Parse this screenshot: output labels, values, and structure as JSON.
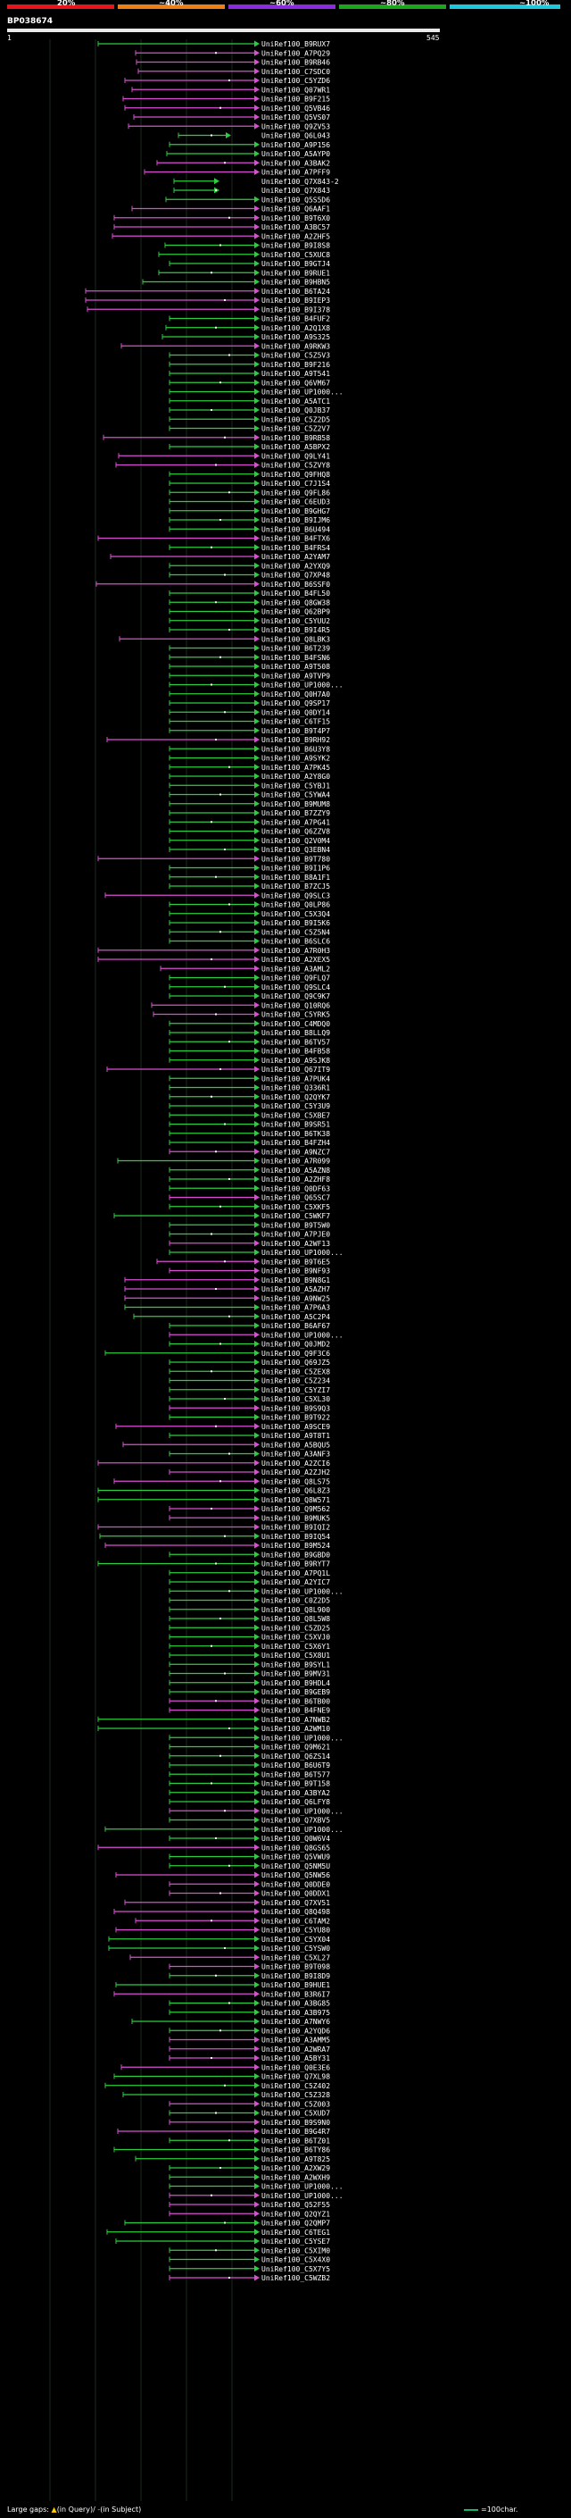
{
  "legend": {
    "labels": [
      "20%",
      "~40%",
      "~60%",
      "~80%",
      "~100%"
    ],
    "colors": [
      "#e8141b",
      "#ed7f14",
      "#8a2be2",
      "#1ea51e",
      "#1ec8dc"
    ]
  },
  "query": {
    "title": "BP038674",
    "start": "1",
    "end": "545"
  },
  "hit_colors": {
    "forward": "#2ecc40",
    "reverse": "#d94fd2",
    "gap": "#ffffff"
  },
  "hits": [
    {
      "label": "UniRef100_B9RUX7",
      "color": "green"
    },
    {
      "label": "UniRef100_A7PQ29",
      "color": "pink"
    },
    {
      "label": "UniRef100_B9RB46",
      "color": "pink"
    },
    {
      "label": "UniRef100_C7SDC0",
      "color": "pink"
    },
    {
      "label": "UniRef100_C5YZD6",
      "color": "pink"
    },
    {
      "label": "UniRef100_Q07WR1",
      "color": "pink"
    },
    {
      "label": "UniRef100_B9F215",
      "color": "pink"
    },
    {
      "label": "UniRef100_Q5VB46",
      "color": "pink"
    },
    {
      "label": "UniRef100_Q5VS07",
      "color": "pink"
    },
    {
      "label": "UniRef100_Q9ZV53",
      "color": "pink"
    },
    {
      "label": "UniRef100_Q6L043",
      "color": "green"
    },
    {
      "label": "UniRef100_A9P156",
      "color": "green"
    },
    {
      "label": "UniRef100_A5AYP0",
      "color": "green"
    },
    {
      "label": "UniRef100_A3BAK2",
      "color": "pink"
    },
    {
      "label": "UniRef100_A7PFF9",
      "color": "pink"
    },
    {
      "label": "UniRef100_Q7X843-2",
      "color": "green"
    },
    {
      "label": "UniRef100_Q7X843",
      "color": "green"
    },
    {
      "label": "UniRef100_Q5S5D6",
      "color": "green"
    },
    {
      "label": "UniRef100_Q6AAF1",
      "color": "pink"
    },
    {
      "label": "UniRef100_B9T6X0",
      "color": "pink"
    },
    {
      "label": "UniRef100_A3BC57",
      "color": "pink"
    },
    {
      "label": "UniRef100_A2ZHF5",
      "color": "pink"
    },
    {
      "label": "UniRef100_B9I8S8",
      "color": "green"
    },
    {
      "label": "UniRef100_C5XUC8",
      "color": "green"
    },
    {
      "label": "UniRef100_B9GTJ4",
      "color": "green"
    },
    {
      "label": "UniRef100_B9RUE1",
      "color": "green"
    },
    {
      "label": "UniRef100_B9HBN5",
      "color": "green"
    },
    {
      "label": "UniRef100_B6TA24",
      "color": "pink"
    },
    {
      "label": "UniRef100_B9IEP3",
      "color": "pink"
    },
    {
      "label": "UniRef100_B9I378",
      "color": "pink"
    },
    {
      "label": "UniRef100_B4FUF2",
      "color": "green"
    },
    {
      "label": "UniRef100_A2Q1X8",
      "color": "green"
    },
    {
      "label": "UniRef100_A9S325",
      "color": "green"
    },
    {
      "label": "UniRef100_A9RKW3",
      "color": "pink"
    },
    {
      "label": "UniRef100_C5Z5V3",
      "color": "green"
    },
    {
      "label": "UniRef100_B9F216",
      "color": "green"
    },
    {
      "label": "UniRef100_A9T541",
      "color": "green"
    },
    {
      "label": "UniRef100_Q6VM67",
      "color": "green"
    },
    {
      "label": "UniRef100_UP1000...",
      "color": "green"
    },
    {
      "label": "UniRef100_A5ATC1",
      "color": "green"
    },
    {
      "label": "UniRef100_Q0JB37",
      "color": "green"
    },
    {
      "label": "UniRef100_C5Z2D5",
      "color": "green"
    },
    {
      "label": "UniRef100_C5Z2V7",
      "color": "green"
    },
    {
      "label": "UniRef100_B9RB58",
      "color": "pink"
    },
    {
      "label": "UniRef100_A5BPX2",
      "color": "green"
    },
    {
      "label": "UniRef100_Q9LY41",
      "color": "pink"
    },
    {
      "label": "UniRef100_C5ZVY8",
      "color": "pink"
    },
    {
      "label": "UniRef100_Q9FHQ8",
      "color": "green"
    },
    {
      "label": "UniRef100_C7J1S4",
      "color": "green"
    },
    {
      "label": "UniRef100_Q9FL86",
      "color": "green"
    },
    {
      "label": "UniRef100_C6EUD3",
      "color": "green"
    },
    {
      "label": "UniRef100_B9GHG7",
      "color": "green"
    },
    {
      "label": "UniRef100_B9IJM6",
      "color": "green"
    },
    {
      "label": "UniRef100_B6U494",
      "color": "green"
    },
    {
      "label": "UniRef100_B4FTX6",
      "color": "pink"
    },
    {
      "label": "UniRef100_B4FRS4",
      "color": "green"
    },
    {
      "label": "UniRef100_A2YAM7",
      "color": "pink"
    },
    {
      "label": "UniRef100_A2YXQ9",
      "color": "green"
    },
    {
      "label": "UniRef100_Q7XP48",
      "color": "green"
    },
    {
      "label": "UniRef100_B6SSF0",
      "color": "pink"
    },
    {
      "label": "UniRef100_B4FL50",
      "color": "green"
    },
    {
      "label": "UniRef100_Q8GW38",
      "color": "green"
    },
    {
      "label": "UniRef100_Q62BP9",
      "color": "green"
    },
    {
      "label": "UniRef100_C5YUU2",
      "color": "green"
    },
    {
      "label": "UniRef100_B9I4R5",
      "color": "green"
    },
    {
      "label": "UniRef100_Q8LBK3",
      "color": "pink"
    },
    {
      "label": "UniRef100_B6T239",
      "color": "green"
    },
    {
      "label": "UniRef100_B4FSN6",
      "color": "green"
    },
    {
      "label": "UniRef100_A9T508",
      "color": "green"
    },
    {
      "label": "UniRef100_A9TVP9",
      "color": "green"
    },
    {
      "label": "UniRef100_UP1000...",
      "color": "green"
    },
    {
      "label": "UniRef100_Q0H7A0",
      "color": "green"
    },
    {
      "label": "UniRef100_Q9SP17",
      "color": "green"
    },
    {
      "label": "UniRef100_Q0DY14",
      "color": "green"
    },
    {
      "label": "UniRef100_C6TF15",
      "color": "green"
    },
    {
      "label": "UniRef100_B9T4P7",
      "color": "green"
    },
    {
      "label": "UniRef100_B9RH92",
      "color": "pink"
    },
    {
      "label": "UniRef100_B6U3Y8",
      "color": "green"
    },
    {
      "label": "UniRef100_A9SYK2",
      "color": "green"
    },
    {
      "label": "UniRef100_A7PK45",
      "color": "green"
    },
    {
      "label": "UniRef100_A2Y8G0",
      "color": "green"
    },
    {
      "label": "UniRef100_C5YBJ1",
      "color": "green"
    },
    {
      "label": "UniRef100_C5YWA4",
      "color": "green"
    },
    {
      "label": "UniRef100_B9MUM8",
      "color": "green"
    },
    {
      "label": "UniRef100_B7ZZY9",
      "color": "green"
    },
    {
      "label": "UniRef100_A7PG41",
      "color": "green"
    },
    {
      "label": "UniRef100_Q6ZZV8",
      "color": "green"
    },
    {
      "label": "UniRef100_Q2V0M4",
      "color": "green"
    },
    {
      "label": "UniRef100_Q3EBN4",
      "color": "green"
    },
    {
      "label": "UniRef100_B9T780",
      "color": "pink"
    },
    {
      "label": "UniRef100_B9I1P6",
      "color": "green"
    },
    {
      "label": "UniRef100_B8A1F1",
      "color": "green"
    },
    {
      "label": "UniRef100_B7ZCJ5",
      "color": "green"
    },
    {
      "label": "UniRef100_Q9SLC3",
      "color": "pink"
    },
    {
      "label": "UniRef100_Q0LP86",
      "color": "green"
    },
    {
      "label": "UniRef100_C5X3Q4",
      "color": "green"
    },
    {
      "label": "UniRef100_B9I5K6",
      "color": "green"
    },
    {
      "label": "UniRef100_C5Z5N4",
      "color": "green"
    },
    {
      "label": "UniRef100_B6SLC6",
      "color": "green"
    },
    {
      "label": "UniRef100_A7R0H3",
      "color": "pink"
    },
    {
      "label": "UniRef100_A2XEX5",
      "color": "pink"
    },
    {
      "label": "UniRef100_A3AML2",
      "color": "pink"
    },
    {
      "label": "UniRef100_Q9FLQ7",
      "color": "green"
    },
    {
      "label": "UniRef100_Q9SLC4",
      "color": "green"
    },
    {
      "label": "UniRef100_Q9C9K7",
      "color": "green"
    },
    {
      "label": "UniRef100_Q10RQ6",
      "color": "pink"
    },
    {
      "label": "UniRef100_C5YRK5",
      "color": "pink"
    },
    {
      "label": "UniRef100_C4MDQ0",
      "color": "green"
    },
    {
      "label": "UniRef100_B8LLQ9",
      "color": "green"
    },
    {
      "label": "UniRef100_B6TV57",
      "color": "green"
    },
    {
      "label": "UniRef100_B4FB58",
      "color": "green"
    },
    {
      "label": "UniRef100_A9SJK8",
      "color": "green"
    },
    {
      "label": "UniRef100_Q67IT9",
      "color": "pink"
    },
    {
      "label": "UniRef100_A7PUK4",
      "color": "green"
    },
    {
      "label": "UniRef100_Q336R1",
      "color": "green"
    },
    {
      "label": "UniRef100_Q2QYK7",
      "color": "green"
    },
    {
      "label": "UniRef100_C5Y3U9",
      "color": "green"
    },
    {
      "label": "UniRef100_C5XBE7",
      "color": "green"
    },
    {
      "label": "UniRef100_B9SR51",
      "color": "green"
    },
    {
      "label": "UniRef100_B6TK38",
      "color": "green"
    },
    {
      "label": "UniRef100_B4FZH4",
      "color": "green"
    },
    {
      "label": "UniRef100_A9NZC7",
      "color": "pink"
    },
    {
      "label": "UniRef100_A7R099",
      "color": "green"
    },
    {
      "label": "UniRef100_A5AZN8",
      "color": "green"
    },
    {
      "label": "UniRef100_A2ZHF8",
      "color": "green"
    },
    {
      "label": "UniRef100_Q0DF63",
      "color": "green"
    },
    {
      "label": "UniRef100_Q65SC7",
      "color": "pink"
    },
    {
      "label": "UniRef100_C5XKF5",
      "color": "green"
    },
    {
      "label": "UniRef100_C5WKF7",
      "color": "green"
    },
    {
      "label": "UniRef100_B9T5W0",
      "color": "green"
    },
    {
      "label": "UniRef100_A7PJE0",
      "color": "green"
    },
    {
      "label": "UniRef100_A2WF13",
      "color": "pink"
    },
    {
      "label": "UniRef100_UP1000...",
      "color": "green"
    },
    {
      "label": "UniRef100_B9T6E5",
      "color": "pink"
    },
    {
      "label": "UniRef100_B9NF93",
      "color": "pink"
    },
    {
      "label": "UniRef100_B9N8G1",
      "color": "pink"
    },
    {
      "label": "UniRef100_A5AZH7",
      "color": "pink"
    },
    {
      "label": "UniRef100_A9NW25",
      "color": "pink"
    },
    {
      "label": "UniRef100_A7P6A3",
      "color": "green"
    },
    {
      "label": "UniRef100_A5C2P4",
      "color": "green"
    },
    {
      "label": "UniRef100_B6AF67",
      "color": "green"
    },
    {
      "label": "UniRef100_UP1000...",
      "color": "pink"
    },
    {
      "label": "UniRef100_Q0JMD2",
      "color": "green"
    },
    {
      "label": "UniRef100_Q9F3C6",
      "color": "green"
    },
    {
      "label": "UniRef100_Q69JZ5",
      "color": "green"
    },
    {
      "label": "UniRef100_C5ZEX8",
      "color": "green"
    },
    {
      "label": "UniRef100_C5Z234",
      "color": "green"
    },
    {
      "label": "UniRef100_C5YZI7",
      "color": "green"
    },
    {
      "label": "UniRef100_C5XL30",
      "color": "green"
    },
    {
      "label": "UniRef100_B9S9Q3",
      "color": "pink"
    },
    {
      "label": "UniRef100_B9T922",
      "color": "green"
    },
    {
      "label": "UniRef100_A9SCE9",
      "color": "pink"
    },
    {
      "label": "UniRef100_A9T8T1",
      "color": "green"
    },
    {
      "label": "UniRef100_A5BQU5",
      "color": "pink"
    },
    {
      "label": "UniRef100_A3ANF3",
      "color": "green"
    },
    {
      "label": "UniRef100_A2ZCI6",
      "color": "pink"
    },
    {
      "label": "UniRef100_A2ZJH2",
      "color": "pink"
    },
    {
      "label": "UniRef100_Q8LS75",
      "color": "pink"
    },
    {
      "label": "UniRef100_Q6L8Z3",
      "color": "green"
    },
    {
      "label": "UniRef100_Q8W571",
      "color": "green"
    },
    {
      "label": "UniRef100_Q9M562",
      "color": "pink"
    },
    {
      "label": "UniRef100_B9MUK5",
      "color": "pink"
    },
    {
      "label": "UniRef100_B9IQI2",
      "color": "pink"
    },
    {
      "label": "UniRef100_B9IQ54",
      "color": "green"
    },
    {
      "label": "UniRef100_B9M524",
      "color": "pink"
    },
    {
      "label": "UniRef100_B9GBD0",
      "color": "green"
    },
    {
      "label": "UniRef100_B9RYT7",
      "color": "green"
    },
    {
      "label": "UniRef100_A7PQ1L",
      "color": "green"
    },
    {
      "label": "UniRef100_A2YIC7",
      "color": "green"
    },
    {
      "label": "UniRef100_UP1000...",
      "color": "green"
    },
    {
      "label": "UniRef100_C0Z2D5",
      "color": "green"
    },
    {
      "label": "UniRef100_Q8L900",
      "color": "green"
    },
    {
      "label": "UniRef100_Q8L5W8",
      "color": "green"
    },
    {
      "label": "UniRef100_C5ZD25",
      "color": "green"
    },
    {
      "label": "UniRef100_C5XVJ0",
      "color": "green"
    },
    {
      "label": "UniRef100_C5X6Y1",
      "color": "green"
    },
    {
      "label": "UniRef100_C5X8U1",
      "color": "green"
    },
    {
      "label": "UniRef100_B9SYL1",
      "color": "green"
    },
    {
      "label": "UniRef100_B9MV31",
      "color": "green"
    },
    {
      "label": "UniRef100_B9HDL4",
      "color": "green"
    },
    {
      "label": "UniRef100_B9GEB9",
      "color": "green"
    },
    {
      "label": "UniRef100_B6TB00",
      "color": "pink"
    },
    {
      "label": "UniRef100_B4FNE9",
      "color": "pink"
    },
    {
      "label": "UniRef100_A7NWB2",
      "color": "green"
    },
    {
      "label": "UniRef100_A2WM10",
      "color": "green"
    },
    {
      "label": "UniRef100_UP1000...",
      "color": "green"
    },
    {
      "label": "UniRef100_Q9M621",
      "color": "green"
    },
    {
      "label": "UniRef100_Q6ZS14",
      "color": "green"
    },
    {
      "label": "UniRef100_B6U6T9",
      "color": "green"
    },
    {
      "label": "UniRef100_B6T577",
      "color": "green"
    },
    {
      "label": "UniRef100_B9T158",
      "color": "green"
    },
    {
      "label": "UniRef100_A3BYA2",
      "color": "green"
    },
    {
      "label": "UniRef100_Q6LFY8",
      "color": "green"
    },
    {
      "label": "UniRef100_UP1000...",
      "color": "pink"
    },
    {
      "label": "UniRef100_Q7XBV5",
      "color": "green"
    },
    {
      "label": "UniRef100_UP1000...",
      "color": "green"
    },
    {
      "label": "UniRef100_Q0W6V4",
      "color": "green"
    },
    {
      "label": "UniRef100_Q8GS65",
      "color": "pink"
    },
    {
      "label": "UniRef100_Q5VWU9",
      "color": "green"
    },
    {
      "label": "UniRef100_Q5NM5U",
      "color": "green"
    },
    {
      "label": "UniRef100_Q5NW56",
      "color": "pink"
    },
    {
      "label": "UniRef100_Q0DDE0",
      "color": "pink"
    },
    {
      "label": "UniRef100_Q0DDX1",
      "color": "pink"
    },
    {
      "label": "UniRef100_Q7XV51",
      "color": "pink"
    },
    {
      "label": "UniRef100_Q8Q498",
      "color": "pink"
    },
    {
      "label": "UniRef100_C6TAM2",
      "color": "pink"
    },
    {
      "label": "UniRef100_C5YU80",
      "color": "pink"
    },
    {
      "label": "UniRef100_C5YX04",
      "color": "green"
    },
    {
      "label": "UniRef100_C5YSW0",
      "color": "green"
    },
    {
      "label": "UniRef100_C5XL27",
      "color": "pink"
    },
    {
      "label": "UniRef100_B9T098",
      "color": "pink"
    },
    {
      "label": "UniRef100_B9I8D9",
      "color": "green"
    },
    {
      "label": "UniRef100_B9HUE1",
      "color": "green"
    },
    {
      "label": "UniRef100_B3R6I7",
      "color": "pink"
    },
    {
      "label": "UniRef100_A3BG85",
      "color": "green"
    },
    {
      "label": "UniRef100_A3B975",
      "color": "green"
    },
    {
      "label": "UniRef100_A7NWY6",
      "color": "green"
    },
    {
      "label": "UniRef100_A2YQD6",
      "color": "green"
    },
    {
      "label": "UniRef100_A3AMM5",
      "color": "pink"
    },
    {
      "label": "UniRef100_A2WRA7",
      "color": "pink"
    },
    {
      "label": "UniRef100_A5BY31",
      "color": "pink"
    },
    {
      "label": "UniRef100_Q0E3E6",
      "color": "pink"
    },
    {
      "label": "UniRef100_Q7XL98",
      "color": "green"
    },
    {
      "label": "UniRef100_C5Z402",
      "color": "green"
    },
    {
      "label": "UniRef100_C5Z328",
      "color": "green"
    },
    {
      "label": "UniRef100_C5Z003",
      "color": "pink"
    },
    {
      "label": "UniRef100_C5XUD7",
      "color": "green"
    },
    {
      "label": "UniRef100_B9S9N0",
      "color": "pink"
    },
    {
      "label": "UniRef100_B9G4R7",
      "color": "pink"
    },
    {
      "label": "UniRef100_B6TZ01",
      "color": "green"
    },
    {
      "label": "UniRef100_B6TY86",
      "color": "green"
    },
    {
      "label": "UniRef100_A9T825",
      "color": "green"
    },
    {
      "label": "UniRef100_A2XW29",
      "color": "green"
    },
    {
      "label": "UniRef100_A2WXH9",
      "color": "green"
    },
    {
      "label": "UniRef100_UP1000...",
      "color": "green"
    },
    {
      "label": "UniRef100_UP1000...",
      "color": "pink"
    },
    {
      "label": "UniRef100_Q52F55",
      "color": "pink"
    },
    {
      "label": "UniRef100_Q2QYZ1",
      "color": "pink"
    },
    {
      "label": "UniRef100_Q2QMP7",
      "color": "green"
    },
    {
      "label": "UniRef100_C6TEG1",
      "color": "green"
    },
    {
      "label": "UniRef100_C5YSE7",
      "color": "green"
    },
    {
      "label": "UniRef100_C5XIM0",
      "color": "green"
    },
    {
      "label": "UniRef100_C5X4X0",
      "color": "green"
    },
    {
      "label": "UniRef100_C5X7Y5",
      "color": "green"
    },
    {
      "label": "UniRef100_C5WZB2",
      "color": "pink"
    }
  ],
  "footer": {
    "gaps_label": "Large gaps:",
    "gaps_query_marker": "▲",
    "gaps_query_text": "(in Query)/",
    "gaps_subject_marker": "-",
    "gaps_subject_text": "(in Subject)",
    "scale_text": "=100char."
  }
}
